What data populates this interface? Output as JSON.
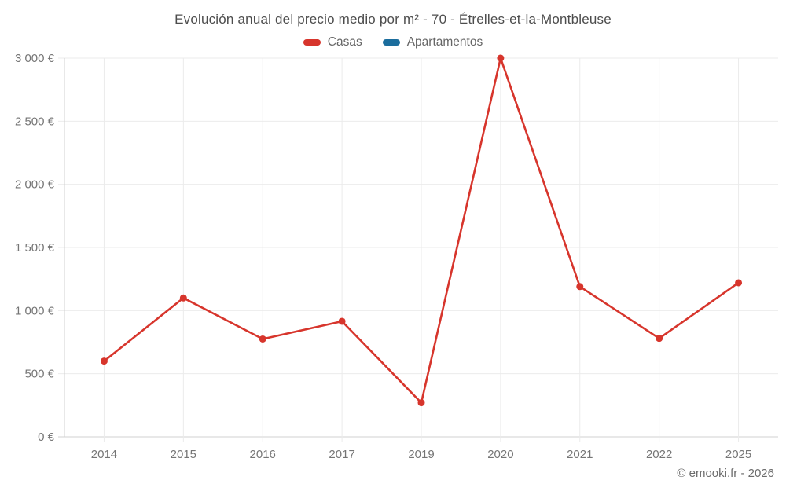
{
  "title": "Evolución anual del precio medio por m² - 70 - Étrelles-et-la-Montbleuse",
  "legend": [
    {
      "label": "Casas",
      "color": "#d7352c"
    },
    {
      "label": "Apartamentos",
      "color": "#1b6d9d"
    }
  ],
  "footer": "© emooki.fr - 2026",
  "colors": {
    "casas": "#d7352c",
    "apartamentos": "#1b6d9d",
    "gridline": "#ebebeb",
    "axis_line": "#d0d0d0",
    "tick_text": "#757575",
    "title_text": "#4d4d4d",
    "background": "#ffffff"
  },
  "chart_data": {
    "type": "line",
    "title": "Evolución anual del precio medio por m² - 70 - Étrelles-et-la-Montbleuse",
    "categories": [
      "2014",
      "2015",
      "2016",
      "2017",
      "2019",
      "2020",
      "2021",
      "2022",
      "2025"
    ],
    "series": [
      {
        "name": "Casas",
        "color": "#d7352c",
        "values": [
          600,
          1100,
          775,
          915,
          270,
          3000,
          1190,
          780,
          1220
        ]
      },
      {
        "name": "Apartamentos",
        "color": "#1b6d9d",
        "values": []
      }
    ],
    "xlabel": "",
    "ylabel": "",
    "ylim": [
      0,
      3000
    ],
    "yticks": [
      0,
      500,
      1000,
      1500,
      2000,
      2500,
      3000
    ],
    "ytick_labels": [
      "0 €",
      "500 €",
      "1 000 €",
      "1 500 €",
      "2 000 €",
      "2 500 €",
      "3 000 €"
    ],
    "grid": true,
    "legend_position": "top",
    "markers": true
  }
}
